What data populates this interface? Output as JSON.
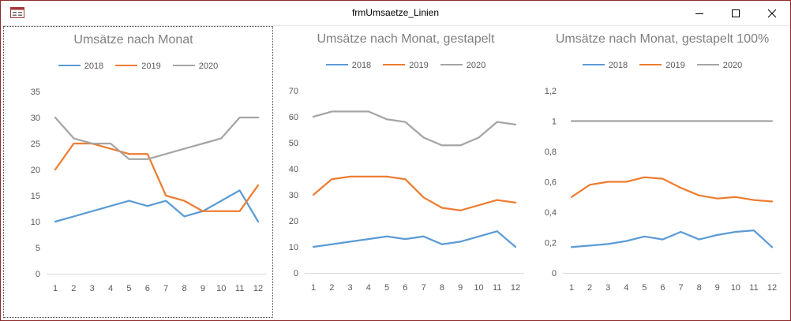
{
  "window": {
    "title": "frmUmsaetze_Linien"
  },
  "icons": {
    "app": "form-icon",
    "minimize": "minimize-icon",
    "maximize": "maximize-icon",
    "close": "close-icon"
  },
  "colors": {
    "s2018": "#5b9bd5",
    "s2019": "#ed7d31",
    "s2020": "#a5a5a5",
    "axis": "#d9d9d9",
    "text": "#595959",
    "title": "#7f7f7f"
  },
  "chart_data": [
    {
      "type": "line",
      "title": "Umsätze nach Monat",
      "categories": [
        "1",
        "2",
        "3",
        "4",
        "5",
        "6",
        "7",
        "8",
        "9",
        "10",
        "11",
        "12"
      ],
      "series": [
        {
          "name": "2018",
          "values": [
            10,
            11,
            12,
            13,
            14,
            13,
            14,
            11,
            12,
            14,
            16,
            10
          ]
        },
        {
          "name": "2019",
          "values": [
            20,
            25,
            25,
            24,
            23,
            23,
            15,
            14,
            12,
            12,
            12,
            17
          ]
        },
        {
          "name": "2020",
          "values": [
            30,
            26,
            25,
            25,
            22,
            22,
            23,
            24,
            25,
            26,
            30,
            30
          ]
        }
      ],
      "ylim": [
        0,
        35
      ],
      "yticks": [
        "0",
        "5",
        "10",
        "15",
        "20",
        "25",
        "30",
        "35"
      ],
      "legend": "top",
      "grid": false
    },
    {
      "type": "line",
      "title": "Umsätze nach Monat, gestapelt",
      "categories": [
        "1",
        "2",
        "3",
        "4",
        "5",
        "6",
        "7",
        "8",
        "9",
        "10",
        "11",
        "12"
      ],
      "series": [
        {
          "name": "2018",
          "values": [
            10,
            11,
            12,
            13,
            14,
            13,
            14,
            11,
            12,
            14,
            16,
            10
          ]
        },
        {
          "name": "2019",
          "values": [
            30,
            36,
            37,
            37,
            37,
            36,
            29,
            25,
            24,
            26,
            28,
            27
          ]
        },
        {
          "name": "2020",
          "values": [
            60,
            62,
            62,
            62,
            59,
            58,
            52,
            49,
            49,
            52,
            58,
            57
          ]
        }
      ],
      "ylim": [
        0,
        70
      ],
      "yticks": [
        "0",
        "10",
        "20",
        "30",
        "40",
        "50",
        "60",
        "70"
      ],
      "legend": "top",
      "grid": false
    },
    {
      "type": "line",
      "title": "Umsätze nach Monat, gestapelt 100%",
      "categories": [
        "1",
        "2",
        "3",
        "4",
        "5",
        "6",
        "7",
        "8",
        "9",
        "10",
        "11",
        "12"
      ],
      "series": [
        {
          "name": "2018",
          "values": [
            0.17,
            0.18,
            0.19,
            0.21,
            0.24,
            0.22,
            0.27,
            0.22,
            0.25,
            0.27,
            0.28,
            0.17
          ]
        },
        {
          "name": "2019",
          "values": [
            0.5,
            0.58,
            0.6,
            0.6,
            0.63,
            0.62,
            0.56,
            0.51,
            0.49,
            0.5,
            0.48,
            0.47
          ]
        },
        {
          "name": "2020",
          "values": [
            1,
            1,
            1,
            1,
            1,
            1,
            1,
            1,
            1,
            1,
            1,
            1
          ]
        }
      ],
      "ylim": [
        0,
        1.2
      ],
      "yticks": [
        "0",
        "0,2",
        "0,4",
        "0,6",
        "0,8",
        "1",
        "1,2"
      ],
      "legend": "top",
      "grid": false
    }
  ]
}
